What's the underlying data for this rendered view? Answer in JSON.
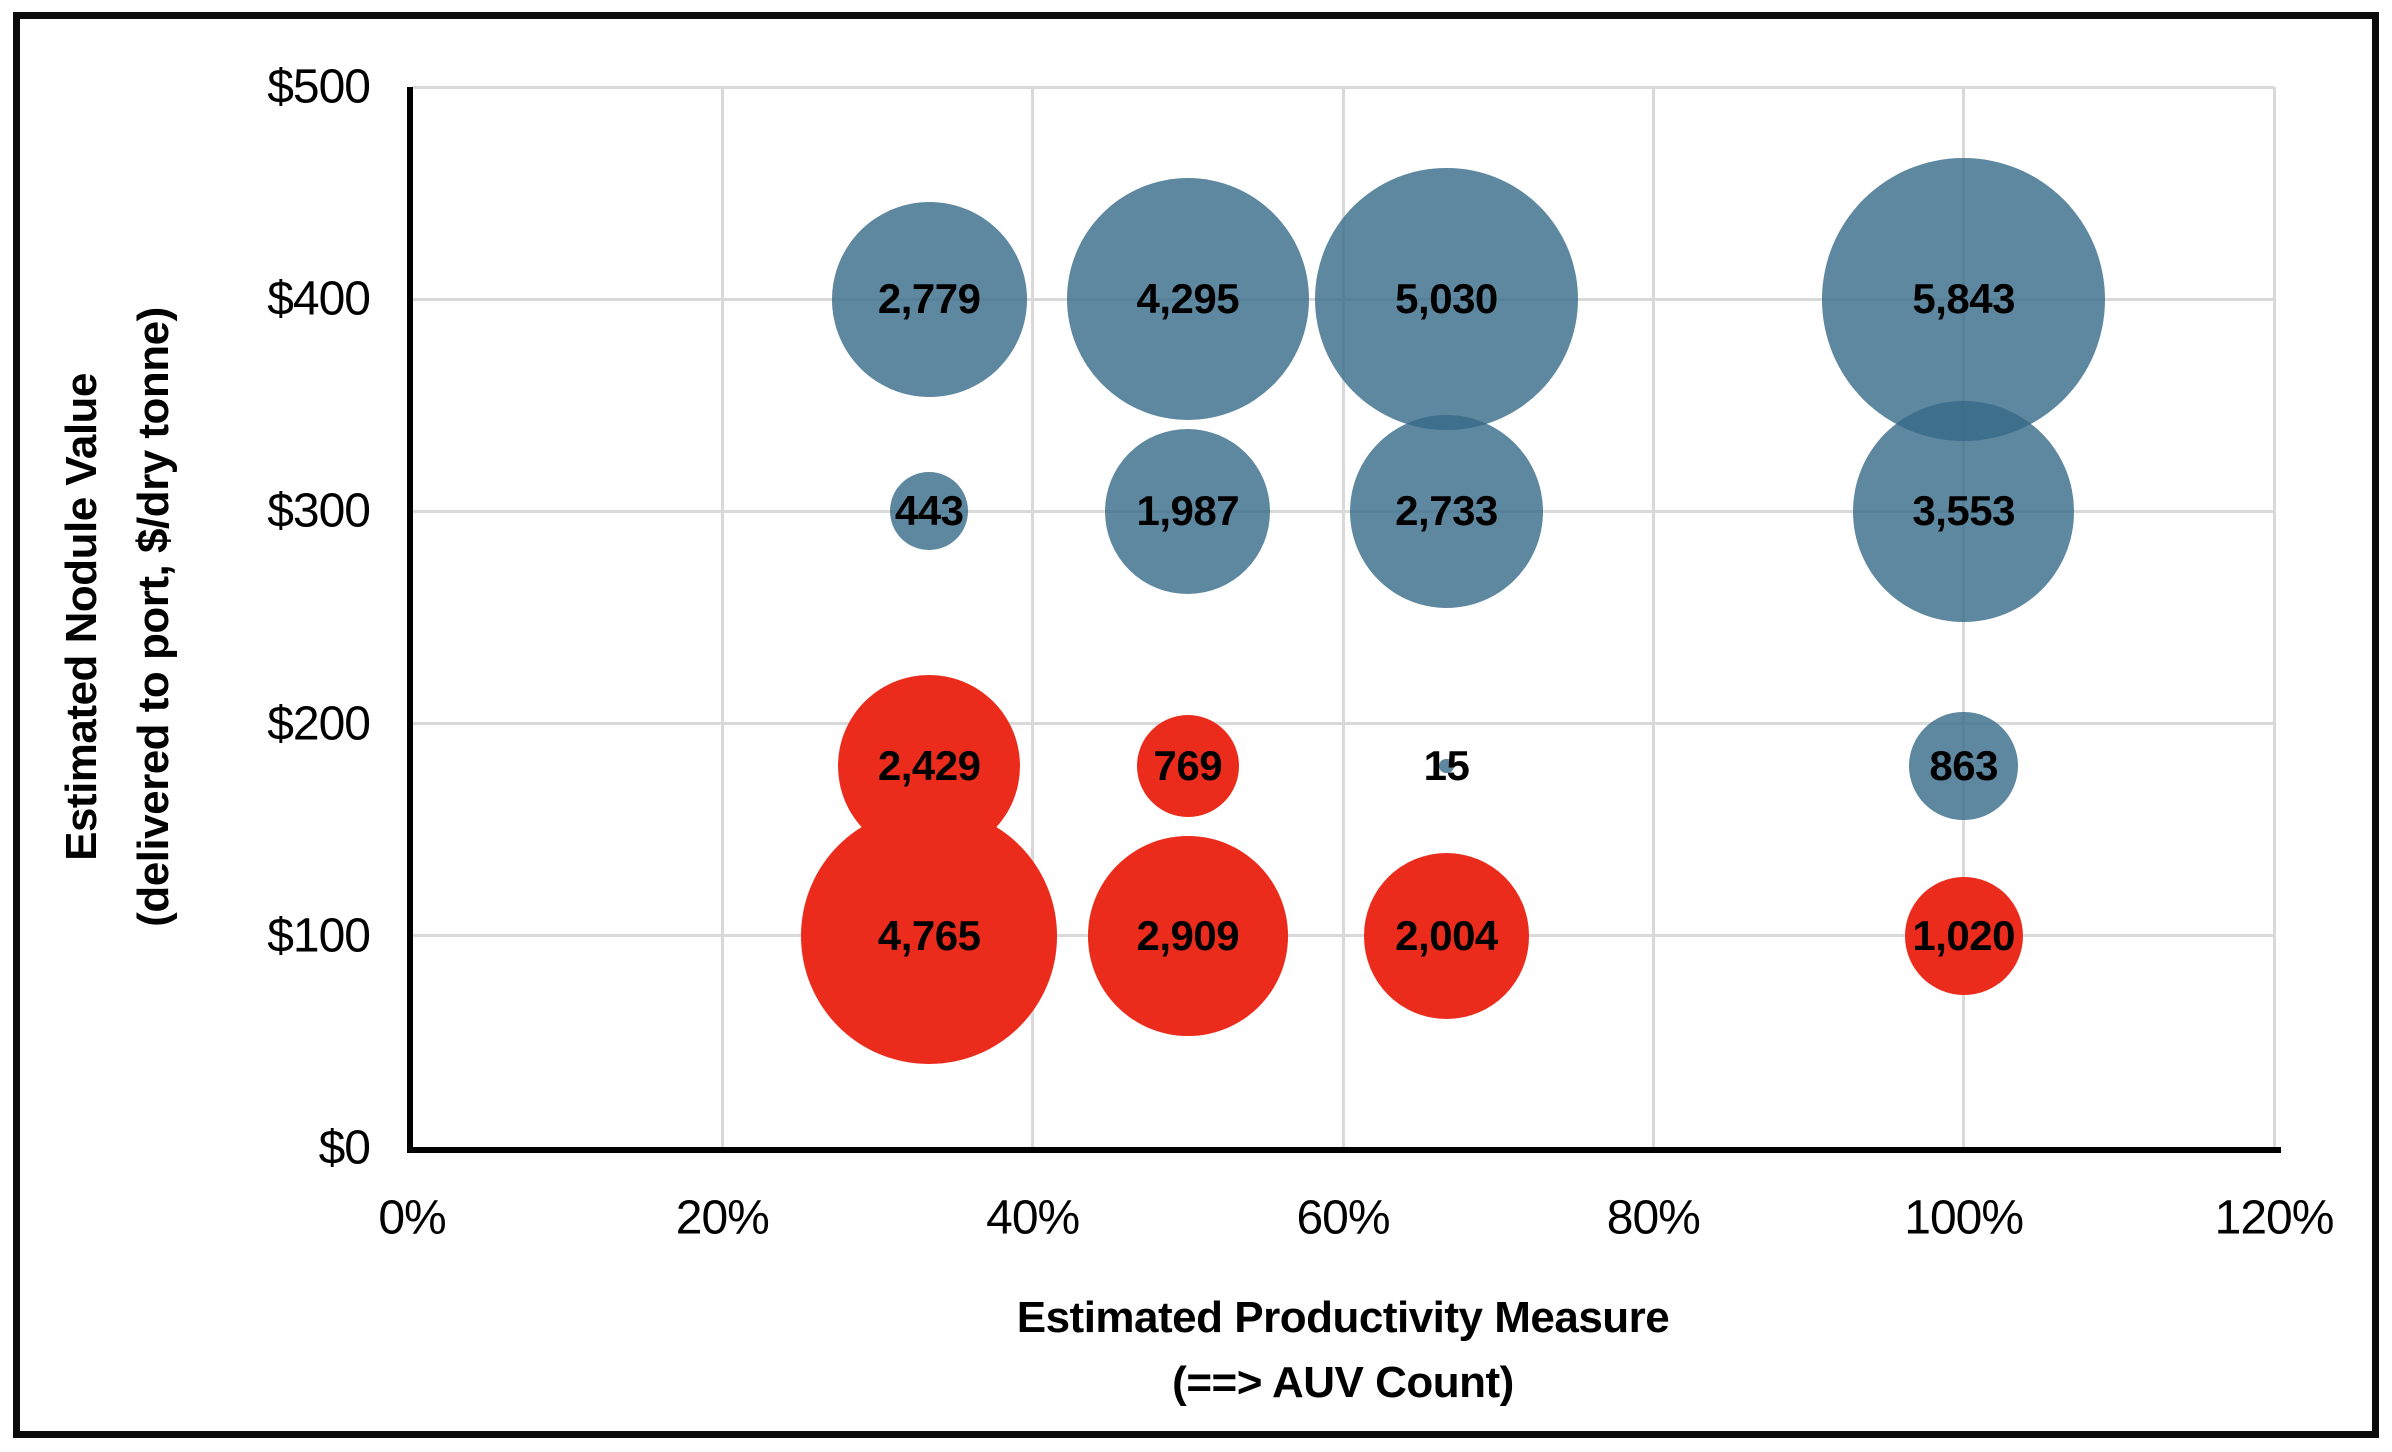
{
  "figure": {
    "background": "#ffffff",
    "border_color": "#0b0b0b",
    "gridline_color": "#d9d9d9",
    "axis_line_color": "#000000"
  },
  "chart_data": {
    "type": "scatter",
    "subtype": "bubble",
    "title": "",
    "legend": "none",
    "grid": true,
    "x_axis": {
      "title_lines": [
        "Estimated Productivity Measure",
        "(==> AUV Count)"
      ],
      "range": [
        0,
        120
      ],
      "tick_values": [
        0,
        20,
        40,
        60,
        80,
        100,
        120
      ],
      "tick_labels": [
        "0%",
        "20%",
        "40%",
        "60%",
        "80%",
        "100%",
        "120%"
      ]
    },
    "y_axis": {
      "title_lines": [
        "Estimated Nodule Value",
        "(delivered to port, $/dry tonne)"
      ],
      "range": [
        0,
        500
      ],
      "tick_values": [
        0,
        100,
        200,
        300,
        400,
        500
      ],
      "tick_labels": [
        "$0",
        "$100",
        "$200",
        "$300",
        "$400",
        "$500"
      ]
    },
    "series": [
      {
        "name": "blue-series",
        "color": "#366988",
        "opacity": 0.8,
        "points": [
          {
            "x": 33.33,
            "y": 400,
            "value": 2779,
            "label": "2,779"
          },
          {
            "x": 50,
            "y": 400,
            "value": 4295,
            "label": "4,295"
          },
          {
            "x": 66.67,
            "y": 400,
            "value": 5030,
            "label": "5,030"
          },
          {
            "x": 100,
            "y": 400,
            "value": 5843,
            "label": "5,843"
          },
          {
            "x": 33.33,
            "y": 300,
            "value": 443,
            "label": "443"
          },
          {
            "x": 50,
            "y": 300,
            "value": 1987,
            "label": "1,987"
          },
          {
            "x": 66.67,
            "y": 300,
            "value": 2733,
            "label": "2,733"
          },
          {
            "x": 100,
            "y": 300,
            "value": 3553,
            "label": "3,553"
          },
          {
            "x": 66.67,
            "y": 180,
            "value": 15,
            "label": "15"
          },
          {
            "x": 100,
            "y": 180,
            "value": 863,
            "label": "863"
          }
        ]
      },
      {
        "name": "red-series",
        "color": "#eb2c1c",
        "opacity": 1,
        "points": [
          {
            "x": 33.33,
            "y": 180,
            "value": 2429,
            "label": "2,429"
          },
          {
            "x": 50,
            "y": 180,
            "value": 769,
            "label": "769"
          },
          {
            "x": 33.33,
            "y": 100,
            "value": 4765,
            "label": "4,765"
          },
          {
            "x": 50,
            "y": 100,
            "value": 2909,
            "label": "2,909"
          },
          {
            "x": 66.67,
            "y": 100,
            "value": 2004,
            "label": "2,004"
          },
          {
            "x": 100,
            "y": 100,
            "value": 1020,
            "label": "1,020"
          }
        ]
      }
    ]
  }
}
